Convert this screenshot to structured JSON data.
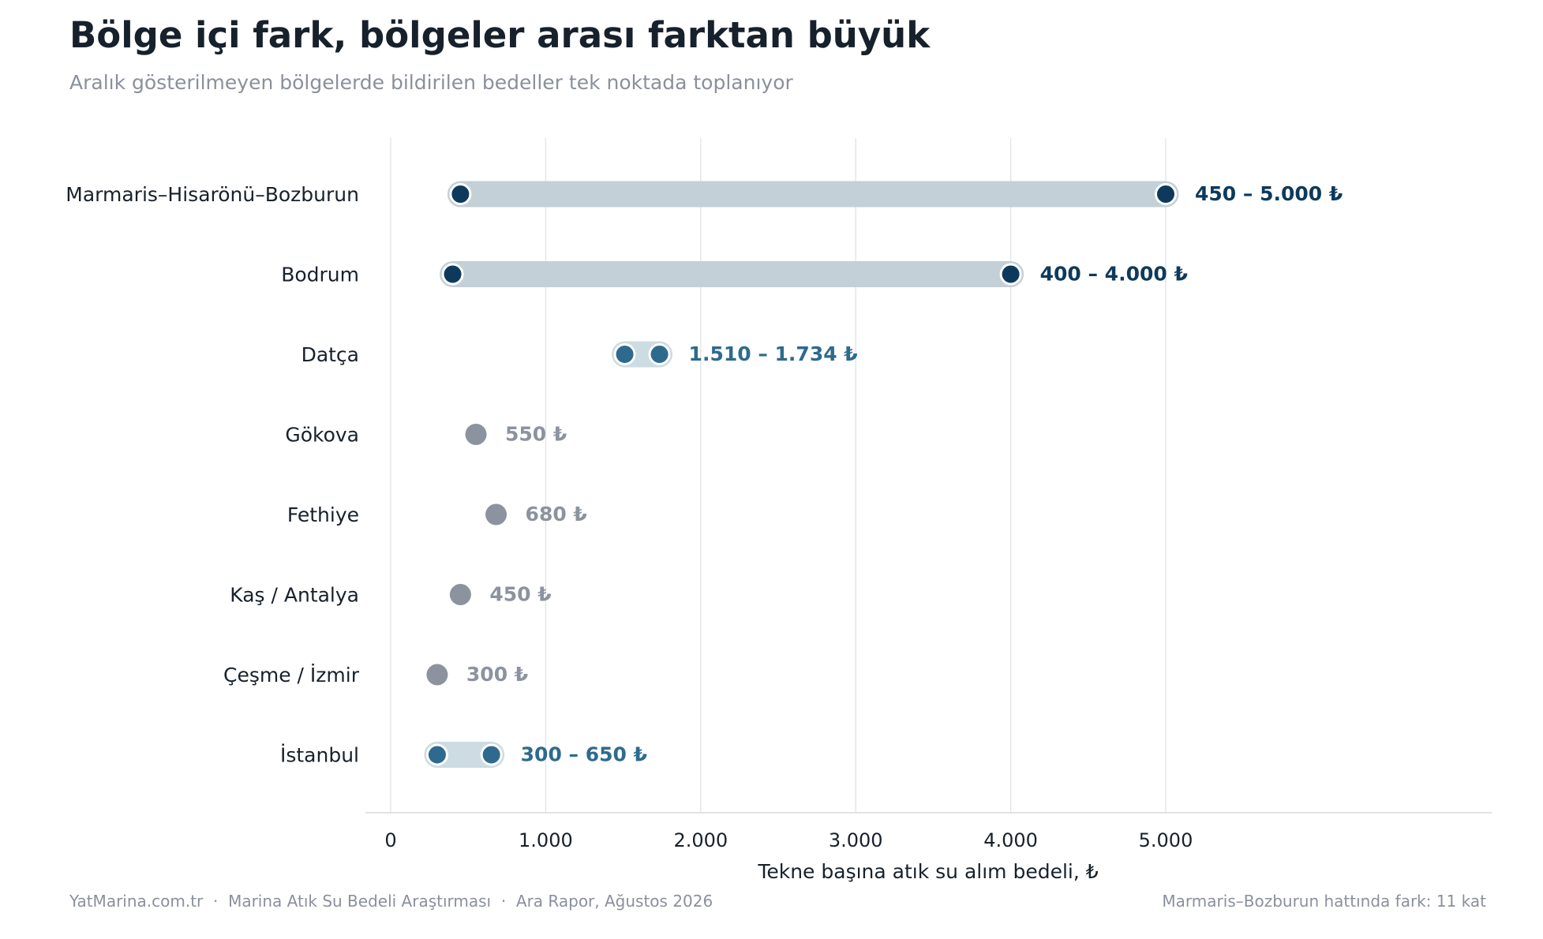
{
  "colors": {
    "dark": "#0d3a5c",
    "mid": "#2e6a8e",
    "grey": "#8c939f",
    "band_dark": "#c3d0d7",
    "band_light": "#cddbe2",
    "grid": "#e1e3e6",
    "text": "#17212b"
  },
  "chart_data": {
    "type": "range-dot",
    "title": "Bölge içi fark, bölgeler arası farktan büyük",
    "subtitle": "Aralık gösterilmeyen bölgelerde bildirilen bedeller tek noktada toplanıyor",
    "xlabel": "Tekne başına atık su alım bedeli, ₺",
    "xlim": [
      0,
      5000
    ],
    "xticks": [
      0,
      1000,
      2000,
      3000,
      4000,
      5000
    ],
    "xtick_labels": [
      "0",
      "1.000",
      "2.000",
      "3.000",
      "4.000",
      "5.000"
    ],
    "grid": "vertical",
    "rows": [
      {
        "region": "Marmaris–Hisarönü–Bozburun",
        "min": 450,
        "max": 5000,
        "label": "450 – 5.000 ₺",
        "style": "dark"
      },
      {
        "region": "Bodrum",
        "min": 400,
        "max": 4000,
        "label": "400 – 4.000 ₺",
        "style": "dark"
      },
      {
        "region": "Datça",
        "min": 1510,
        "max": 1734,
        "label": "1.510 – 1.734 ₺",
        "style": "mid"
      },
      {
        "region": "Gökova",
        "value": 550,
        "label": "550 ₺",
        "style": "grey"
      },
      {
        "region": "Fethiye",
        "value": 680,
        "label": "680 ₺",
        "style": "grey"
      },
      {
        "region": "Kaş / Antalya",
        "value": 450,
        "label": "450 ₺",
        "style": "grey"
      },
      {
        "region": "Çeşme / İzmir",
        "value": 300,
        "label": "300 ₺",
        "style": "grey"
      },
      {
        "region": "İstanbul",
        "min": 300,
        "max": 650,
        "label": "300 – 650 ₺",
        "style": "mid"
      }
    ]
  },
  "footer": {
    "source": "YatMarina.com.tr  ·  Marina Atık Su Bedeli Araştırması  ·  Ara Rapor, Ağustos 2026",
    "note": "Marmaris–Bozburun hattında fark: 11 kat"
  }
}
